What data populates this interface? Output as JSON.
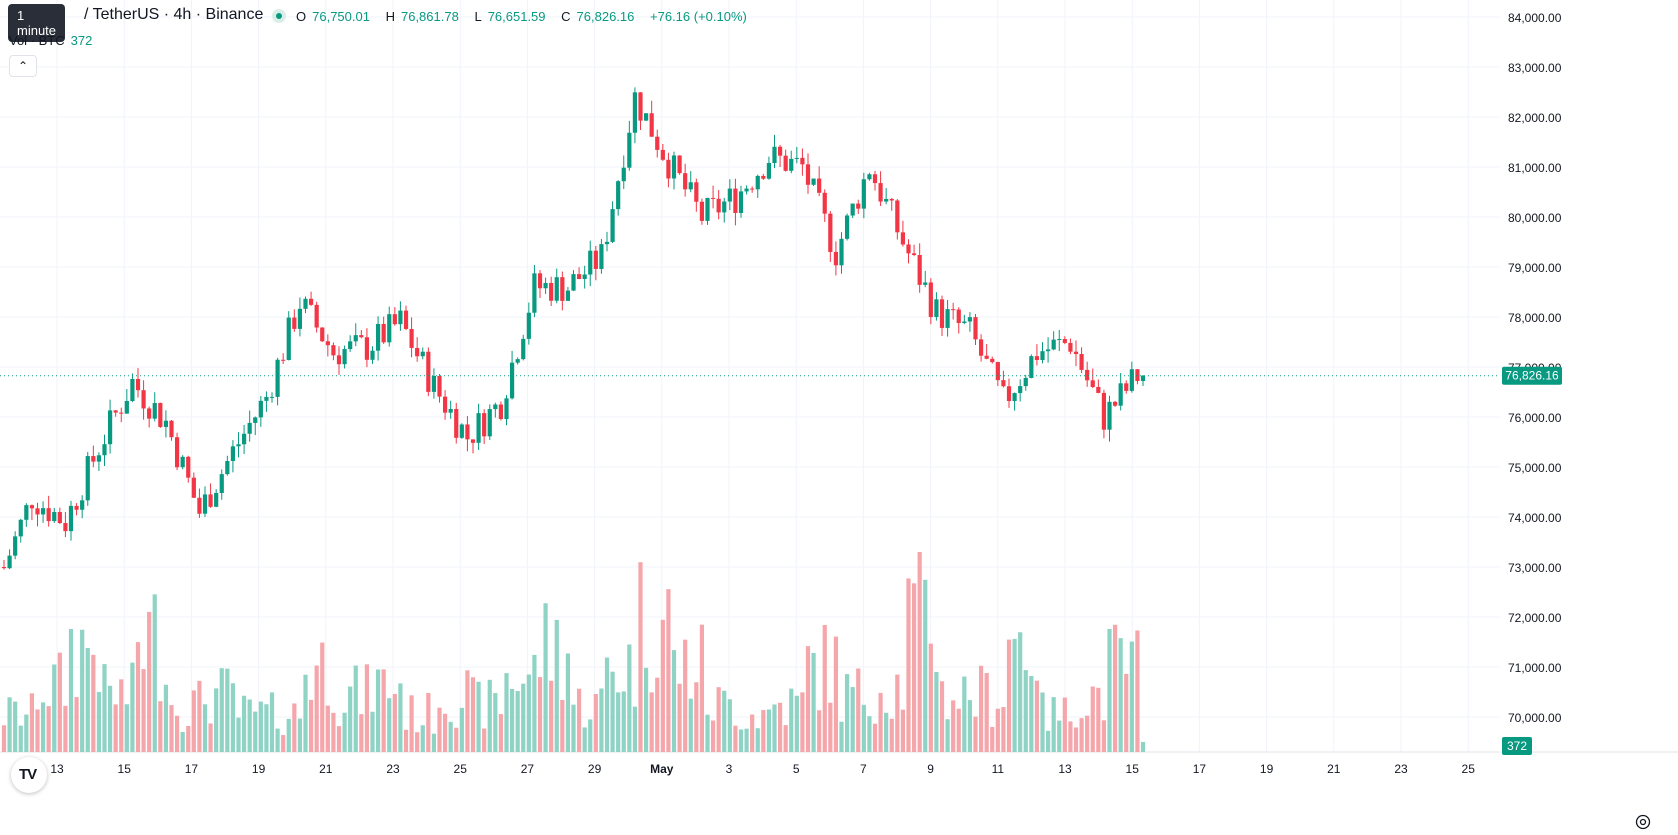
{
  "header": {
    "tooltip": "1 minute",
    "title": "/ TetherUS · 4h · Binance",
    "open_label": "O",
    "open": "76,750.01",
    "high_label": "H",
    "high": "76,861.78",
    "low_label": "L",
    "low": "76,651.59",
    "close_label": "C",
    "close": "76,826.16",
    "change": "+76.16 (+0.10%)",
    "vol_label": "Vol · BTC",
    "vol_value": "372",
    "collapse_icon": "chevron-up-icon"
  },
  "branding": {
    "logo_text": "TV",
    "logo_icon": "tradingview-logo-icon"
  },
  "settings_icon": "gear-icon",
  "colors": {
    "up": "#089981",
    "down": "#f23645",
    "up_volume": "#8fd3c5",
    "down_volume": "#f5a6ab",
    "grid": "#f0f3fa",
    "text": "#131722"
  },
  "chart_data": {
    "type": "candlestick",
    "ylim": [
      69200,
      84300
    ],
    "y_ticks": [
      "84,000.00",
      "83,000.00",
      "82,000.00",
      "81,000.00",
      "80,000.00",
      "79,000.00",
      "78,000.00",
      "77,000.00",
      "76,000.00",
      "75,000.00",
      "74,000.00",
      "73,000.00",
      "72,000.00",
      "71,000.00",
      "70,000.00"
    ],
    "x_ticks": [
      "13",
      "15",
      "17",
      "19",
      "21",
      "23",
      "25",
      "27",
      "29",
      "May",
      "3",
      "5",
      "7",
      "9",
      "11",
      "13",
      "15",
      "17",
      "19",
      "21",
      "23",
      "25"
    ],
    "last_price_label": "76,826.16",
    "volume_label": "372",
    "daily_close": [
      72700,
      74400,
      73900,
      75400,
      76700,
      75900,
      74100,
      75300,
      76400,
      78300,
      77300,
      77400,
      77900,
      76600,
      75600,
      76300,
      78600,
      78600,
      79200,
      82400,
      81100,
      80000,
      80400,
      81200,
      81000,
      79300,
      81000,
      79500,
      78100,
      77700,
      76300,
      77300,
      77500,
      76000,
      76826.16
    ],
    "volume_relative": [
      0.2,
      0.35,
      0.55,
      0.3,
      0.6,
      0.25,
      0.3,
      0.2,
      0.2,
      0.45,
      0.3,
      0.35,
      0.2,
      0.3,
      0.25,
      0.4,
      0.55,
      0.25,
      0.45,
      0.7,
      0.45,
      0.25,
      0.2,
      0.25,
      0.45,
      0.3,
      0.35,
      0.7,
      0.3,
      0.3,
      0.6,
      0.2,
      0.3,
      0.45,
      0.1
    ]
  }
}
